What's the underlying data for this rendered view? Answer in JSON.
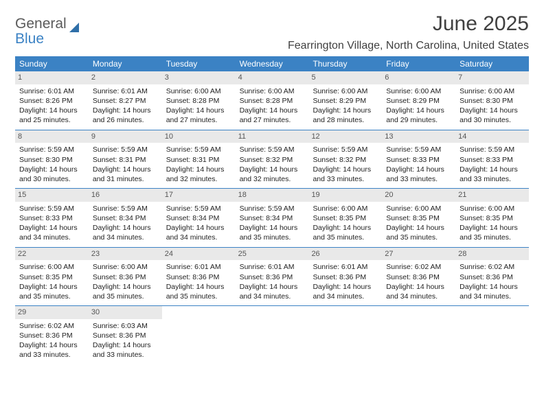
{
  "logo": {
    "word1": "General",
    "word2": "Blue"
  },
  "title": "June 2025",
  "location": "Fearrington Village, North Carolina, United States",
  "colors": {
    "header_bg": "#3b82c4",
    "header_text": "#ffffff",
    "daynum_bg": "#e9e9e9",
    "daynum_text": "#555555",
    "body_text": "#222222",
    "week_border": "#3b82c4",
    "page_bg": "#ffffff",
    "logo_gray": "#5a5a5a",
    "logo_blue": "#3b82c4"
  },
  "typography": {
    "month_title_fontsize": 30,
    "location_fontsize": 16,
    "dayhead_fontsize": 12,
    "daynum_fontsize": 11,
    "cell_fontsize": 10.5,
    "logo_fontsize": 21
  },
  "day_headers": [
    "Sunday",
    "Monday",
    "Tuesday",
    "Wednesday",
    "Thursday",
    "Friday",
    "Saturday"
  ],
  "days": [
    {
      "n": 1,
      "sunrise": "6:01 AM",
      "sunset": "8:26 PM",
      "daylight": "14 hours and 25 minutes."
    },
    {
      "n": 2,
      "sunrise": "6:01 AM",
      "sunset": "8:27 PM",
      "daylight": "14 hours and 26 minutes."
    },
    {
      "n": 3,
      "sunrise": "6:00 AM",
      "sunset": "8:28 PM",
      "daylight": "14 hours and 27 minutes."
    },
    {
      "n": 4,
      "sunrise": "6:00 AM",
      "sunset": "8:28 PM",
      "daylight": "14 hours and 27 minutes."
    },
    {
      "n": 5,
      "sunrise": "6:00 AM",
      "sunset": "8:29 PM",
      "daylight": "14 hours and 28 minutes."
    },
    {
      "n": 6,
      "sunrise": "6:00 AM",
      "sunset": "8:29 PM",
      "daylight": "14 hours and 29 minutes."
    },
    {
      "n": 7,
      "sunrise": "6:00 AM",
      "sunset": "8:30 PM",
      "daylight": "14 hours and 30 minutes."
    },
    {
      "n": 8,
      "sunrise": "5:59 AM",
      "sunset": "8:30 PM",
      "daylight": "14 hours and 30 minutes."
    },
    {
      "n": 9,
      "sunrise": "5:59 AM",
      "sunset": "8:31 PM",
      "daylight": "14 hours and 31 minutes."
    },
    {
      "n": 10,
      "sunrise": "5:59 AM",
      "sunset": "8:31 PM",
      "daylight": "14 hours and 32 minutes."
    },
    {
      "n": 11,
      "sunrise": "5:59 AM",
      "sunset": "8:32 PM",
      "daylight": "14 hours and 32 minutes."
    },
    {
      "n": 12,
      "sunrise": "5:59 AM",
      "sunset": "8:32 PM",
      "daylight": "14 hours and 33 minutes."
    },
    {
      "n": 13,
      "sunrise": "5:59 AM",
      "sunset": "8:33 PM",
      "daylight": "14 hours and 33 minutes."
    },
    {
      "n": 14,
      "sunrise": "5:59 AM",
      "sunset": "8:33 PM",
      "daylight": "14 hours and 33 minutes."
    },
    {
      "n": 15,
      "sunrise": "5:59 AM",
      "sunset": "8:33 PM",
      "daylight": "14 hours and 34 minutes."
    },
    {
      "n": 16,
      "sunrise": "5:59 AM",
      "sunset": "8:34 PM",
      "daylight": "14 hours and 34 minutes."
    },
    {
      "n": 17,
      "sunrise": "5:59 AM",
      "sunset": "8:34 PM",
      "daylight": "14 hours and 34 minutes."
    },
    {
      "n": 18,
      "sunrise": "5:59 AM",
      "sunset": "8:34 PM",
      "daylight": "14 hours and 35 minutes."
    },
    {
      "n": 19,
      "sunrise": "6:00 AM",
      "sunset": "8:35 PM",
      "daylight": "14 hours and 35 minutes."
    },
    {
      "n": 20,
      "sunrise": "6:00 AM",
      "sunset": "8:35 PM",
      "daylight": "14 hours and 35 minutes."
    },
    {
      "n": 21,
      "sunrise": "6:00 AM",
      "sunset": "8:35 PM",
      "daylight": "14 hours and 35 minutes."
    },
    {
      "n": 22,
      "sunrise": "6:00 AM",
      "sunset": "8:35 PM",
      "daylight": "14 hours and 35 minutes."
    },
    {
      "n": 23,
      "sunrise": "6:00 AM",
      "sunset": "8:36 PM",
      "daylight": "14 hours and 35 minutes."
    },
    {
      "n": 24,
      "sunrise": "6:01 AM",
      "sunset": "8:36 PM",
      "daylight": "14 hours and 35 minutes."
    },
    {
      "n": 25,
      "sunrise": "6:01 AM",
      "sunset": "8:36 PM",
      "daylight": "14 hours and 34 minutes."
    },
    {
      "n": 26,
      "sunrise": "6:01 AM",
      "sunset": "8:36 PM",
      "daylight": "14 hours and 34 minutes."
    },
    {
      "n": 27,
      "sunrise": "6:02 AM",
      "sunset": "8:36 PM",
      "daylight": "14 hours and 34 minutes."
    },
    {
      "n": 28,
      "sunrise": "6:02 AM",
      "sunset": "8:36 PM",
      "daylight": "14 hours and 34 minutes."
    },
    {
      "n": 29,
      "sunrise": "6:02 AM",
      "sunset": "8:36 PM",
      "daylight": "14 hours and 33 minutes."
    },
    {
      "n": 30,
      "sunrise": "6:03 AM",
      "sunset": "8:36 PM",
      "daylight": "14 hours and 33 minutes."
    }
  ],
  "labels": {
    "sunrise_prefix": "Sunrise: ",
    "sunset_prefix": "Sunset: ",
    "daylight_prefix": "Daylight: "
  },
  "layout": {
    "first_weekday_index": 0,
    "days_in_month": 30,
    "columns": 7,
    "rows": 5
  }
}
